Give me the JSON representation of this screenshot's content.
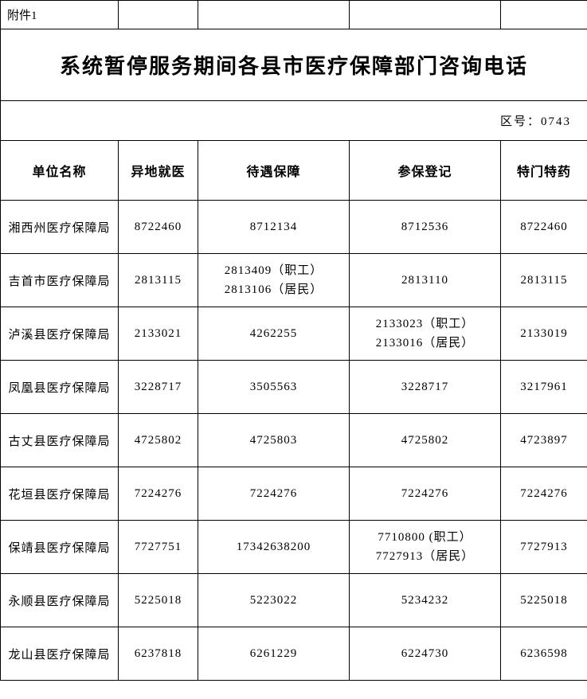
{
  "attachment_label": "附件1",
  "title": "系统暂停服务期间各县市医疗保障部门咨询电话",
  "area_code_label": "区号：0743",
  "columns": {
    "name": "单位名称",
    "c1": "异地就医",
    "c2": "待遇保障",
    "c3": "参保登记",
    "c4": "特门特药"
  },
  "rows": [
    {
      "name": "湘西州医疗保障局",
      "c1": "8722460",
      "c2": "8712134",
      "c3": "8712536",
      "c4": "8722460"
    },
    {
      "name": "吉首市医疗保障局",
      "c1": "2813115",
      "c2": "2813409（职工）\n2813106（居民）",
      "c3": "2813110",
      "c4": "2813115"
    },
    {
      "name": "泸溪县医疗保障局",
      "c1": "2133021",
      "c2": "4262255",
      "c3": "2133023（职工）\n2133016（居民）",
      "c4": "2133019"
    },
    {
      "name": "凤凰县医疗保障局",
      "c1": "3228717",
      "c2": "3505563",
      "c3": "3228717",
      "c4": "3217961"
    },
    {
      "name": "古丈县医疗保障局",
      "c1": "4725802",
      "c2": "4725803",
      "c3": "4725802",
      "c4": "4723897"
    },
    {
      "name": "花垣县医疗保障局",
      "c1": "7224276",
      "c2": "7224276",
      "c3": "7224276",
      "c4": "7224276"
    },
    {
      "name": "保靖县医疗保障局",
      "c1": "7727751",
      "c2": "17342638200",
      "c3": "7710800 (职工）\n7727913（居民）",
      "c4": "7727913"
    },
    {
      "name": "永顺县医疗保障局",
      "c1": "5225018",
      "c2": "5223022",
      "c3": "5234232",
      "c4": "5225018"
    },
    {
      "name": "龙山县医疗保障局",
      "c1": "6237818",
      "c2": "6261229",
      "c3": "6224730",
      "c4": "6236598"
    }
  ],
  "styling": {
    "border_color": "#000000",
    "background_color": "#ffffff",
    "text_color": "#000000",
    "title_fontsize": 26,
    "header_fontsize": 16,
    "cell_fontsize": 15,
    "font_family": "SimSun"
  }
}
